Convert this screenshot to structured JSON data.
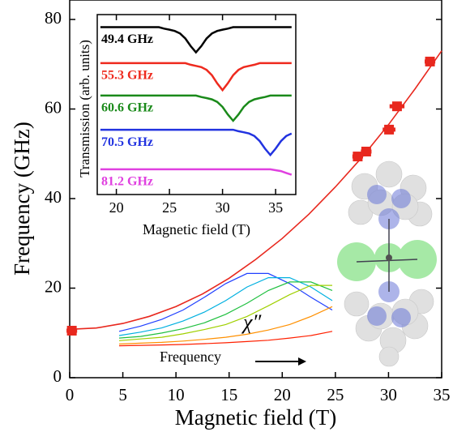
{
  "chart_data": [
    {
      "type": "scatter",
      "xlabel": "Magnetic field (T)",
      "ylabel": "Frequency (GHz)",
      "xlim": [
        0,
        35
      ],
      "ylim": [
        0,
        80
      ],
      "xticks": [
        0,
        5,
        10,
        15,
        20,
        25,
        30,
        35
      ],
      "yticks": [
        0,
        20,
        40,
        60,
        80
      ],
      "x": [
        0.2,
        27.1,
        27.9,
        30.05,
        30.8,
        33.9
      ],
      "values": [
        10.5,
        49.4,
        50.5,
        55.4,
        60.6,
        70.6
      ],
      "xerr": [
        0.5,
        0.5,
        0.5,
        0.6,
        0.7,
        0.5
      ],
      "color": "#e8281e",
      "fit_x": [
        0,
        2.5,
        5,
        7.5,
        10,
        12.5,
        15,
        17.5,
        20,
        22.5,
        25,
        27.5,
        30,
        32.5,
        35
      ],
      "fit_values": [
        10.8,
        11.1,
        12.1,
        13.7,
        15.9,
        18.7,
        22.2,
        26.4,
        31.1,
        36.5,
        42.6,
        49.2,
        56.5,
        64.5,
        73.0
      ],
      "fit_color": "#e8281e"
    },
    {
      "type": "line",
      "xlabel": "Magnetic field (T)",
      "ylabel": "Transmission (arb. units)",
      "xlim": [
        18.2,
        36.9
      ],
      "ylim": [
        0,
        10
      ],
      "xticks": [
        20,
        25,
        30,
        35
      ],
      "x": [
        18.5,
        19,
        19.5,
        20,
        20.5,
        21,
        21.5,
        22,
        22.5,
        23,
        23.5,
        24,
        24.5,
        25,
        25.5,
        26,
        26.5,
        27,
        27.5,
        28,
        28.5,
        29,
        29.5,
        30,
        30.5,
        31,
        31.5,
        32,
        32.5,
        33,
        33.5,
        34,
        34.5,
        35,
        35.5,
        36,
        36.5
      ],
      "series": [
        {
          "name": "49.4 GHz",
          "color": "#000000",
          "values": [
            9.3,
            9.3,
            9.3,
            9.3,
            9.3,
            9.3,
            9.3,
            9.3,
            9.3,
            9.3,
            9.3,
            9.3,
            9.22,
            9.16,
            9.09,
            8.95,
            8.67,
            8.25,
            7.9,
            8.25,
            8.67,
            8.95,
            9.09,
            9.16,
            9.22,
            9.3,
            9.3,
            9.3,
            9.3,
            9.3,
            9.3,
            9.3,
            9.3,
            9.3,
            9.3,
            9.3,
            9.3
          ]
        },
        {
          "name": "55.3 GHz",
          "color": "#ee2a1e",
          "values": [
            7.3,
            7.3,
            7.3,
            7.3,
            7.3,
            7.3,
            7.3,
            7.3,
            7.3,
            7.3,
            7.3,
            7.3,
            7.3,
            7.3,
            7.3,
            7.3,
            7.3,
            7.21,
            7.15,
            7.08,
            6.93,
            6.63,
            6.18,
            5.8,
            6.18,
            6.63,
            6.93,
            7.08,
            7.15,
            7.21,
            7.3,
            7.3,
            7.3,
            7.3,
            7.3,
            7.3,
            7.3
          ]
        },
        {
          "name": "60.6 GHz",
          "color": "#1a8a1a",
          "values": [
            5.5,
            5.5,
            5.5,
            5.5,
            5.5,
            5.5,
            5.5,
            5.5,
            5.5,
            5.5,
            5.5,
            5.5,
            5.5,
            5.5,
            5.5,
            5.5,
            5.5,
            5.5,
            5.5,
            5.42,
            5.36,
            5.29,
            5.15,
            4.87,
            4.45,
            4.1,
            4.45,
            4.87,
            5.15,
            5.29,
            5.36,
            5.42,
            5.5,
            5.5,
            5.5,
            5.5,
            5.5
          ]
        },
        {
          "name": "70.5 GHz",
          "color": "#2233e0",
          "values": [
            3.6,
            3.6,
            3.6,
            3.6,
            3.6,
            3.6,
            3.6,
            3.6,
            3.6,
            3.6,
            3.6,
            3.6,
            3.6,
            3.6,
            3.6,
            3.6,
            3.6,
            3.6,
            3.6,
            3.6,
            3.6,
            3.6,
            3.6,
            3.6,
            3.6,
            3.6,
            3.52,
            3.46,
            3.39,
            3.25,
            2.97,
            2.55,
            2.2,
            2.55,
            2.97,
            3.25,
            3.39
          ]
        },
        {
          "name": "81.2 GHz",
          "color": "#e040e0",
          "values": [
            1.4,
            1.4,
            1.4,
            1.4,
            1.4,
            1.4,
            1.4,
            1.4,
            1.4,
            1.4,
            1.4,
            1.4,
            1.4,
            1.4,
            1.4,
            1.4,
            1.4,
            1.4,
            1.4,
            1.4,
            1.4,
            1.4,
            1.4,
            1.4,
            1.4,
            1.4,
            1.4,
            1.4,
            1.4,
            1.4,
            1.4,
            1.4,
            1.4,
            1.35,
            1.3,
            1.2,
            1.1
          ]
        }
      ]
    },
    {
      "type": "line",
      "xlabel": "Frequency",
      "annotation": "χ″",
      "xlim": [
        0,
        10
      ],
      "ylim": [
        0,
        10
      ],
      "x": [
        0,
        1,
        2,
        3,
        4,
        5,
        6,
        7,
        8,
        9,
        10
      ],
      "series": [
        {
          "color": "#2040ff",
          "values": [
            2.5,
            3.1,
            3.9,
            5.0,
            6.5,
            8.1,
            9.3,
            9.3,
            8.1,
            6.5,
            5.0
          ]
        },
        {
          "color": "#00b0e0",
          "values": [
            2.0,
            2.4,
            2.9,
            3.7,
            4.75,
            6.1,
            7.7,
            8.8,
            8.8,
            7.7,
            6.1
          ]
        },
        {
          "color": "#20c040",
          "values": [
            1.7,
            1.9,
            2.3,
            2.8,
            3.5,
            4.5,
            5.8,
            7.3,
            8.3,
            8.3,
            7.3
          ]
        },
        {
          "color": "#a0d000",
          "values": [
            1.4,
            1.6,
            1.8,
            2.2,
            2.7,
            3.3,
            4.25,
            5.5,
            6.8,
            7.9,
            7.9
          ]
        },
        {
          "color": "#ff9000",
          "values": [
            1.0,
            1.1,
            1.2,
            1.35,
            1.55,
            1.8,
            2.15,
            2.65,
            3.3,
            4.25,
            5.4
          ]
        },
        {
          "color": "#ff2000",
          "values": [
            0.8,
            0.85,
            0.9,
            0.95,
            1.05,
            1.15,
            1.3,
            1.45,
            1.7,
            2.0,
            2.5
          ]
        }
      ]
    }
  ]
}
